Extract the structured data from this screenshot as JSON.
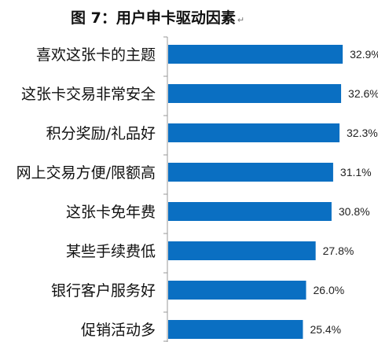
{
  "chart_data": {
    "type": "bar",
    "orientation": "horizontal",
    "title": "图 7：用户申卡驱动因素",
    "categories": [
      "喜欢这张卡的主题",
      "这张卡交易非常安全",
      "积分奖励/礼品好",
      "网上交易方便/限额高",
      "这张卡免年费",
      "某些手续费低",
      "银行客户服务好",
      "促销活动多"
    ],
    "values": [
      32.9,
      32.6,
      32.3,
      31.1,
      30.8,
      27.8,
      26.0,
      25.4
    ],
    "value_labels": [
      "32.9%",
      "32.6%",
      "32.3%",
      "31.1%",
      "30.8%",
      "27.8%",
      "26.0%",
      "25.4%"
    ],
    "bar_color": "#0a6fc2",
    "axis_color": "#999999",
    "xlim": [
      0,
      40
    ],
    "grid": false,
    "legend": "none"
  },
  "paragraph_mark": "↵"
}
